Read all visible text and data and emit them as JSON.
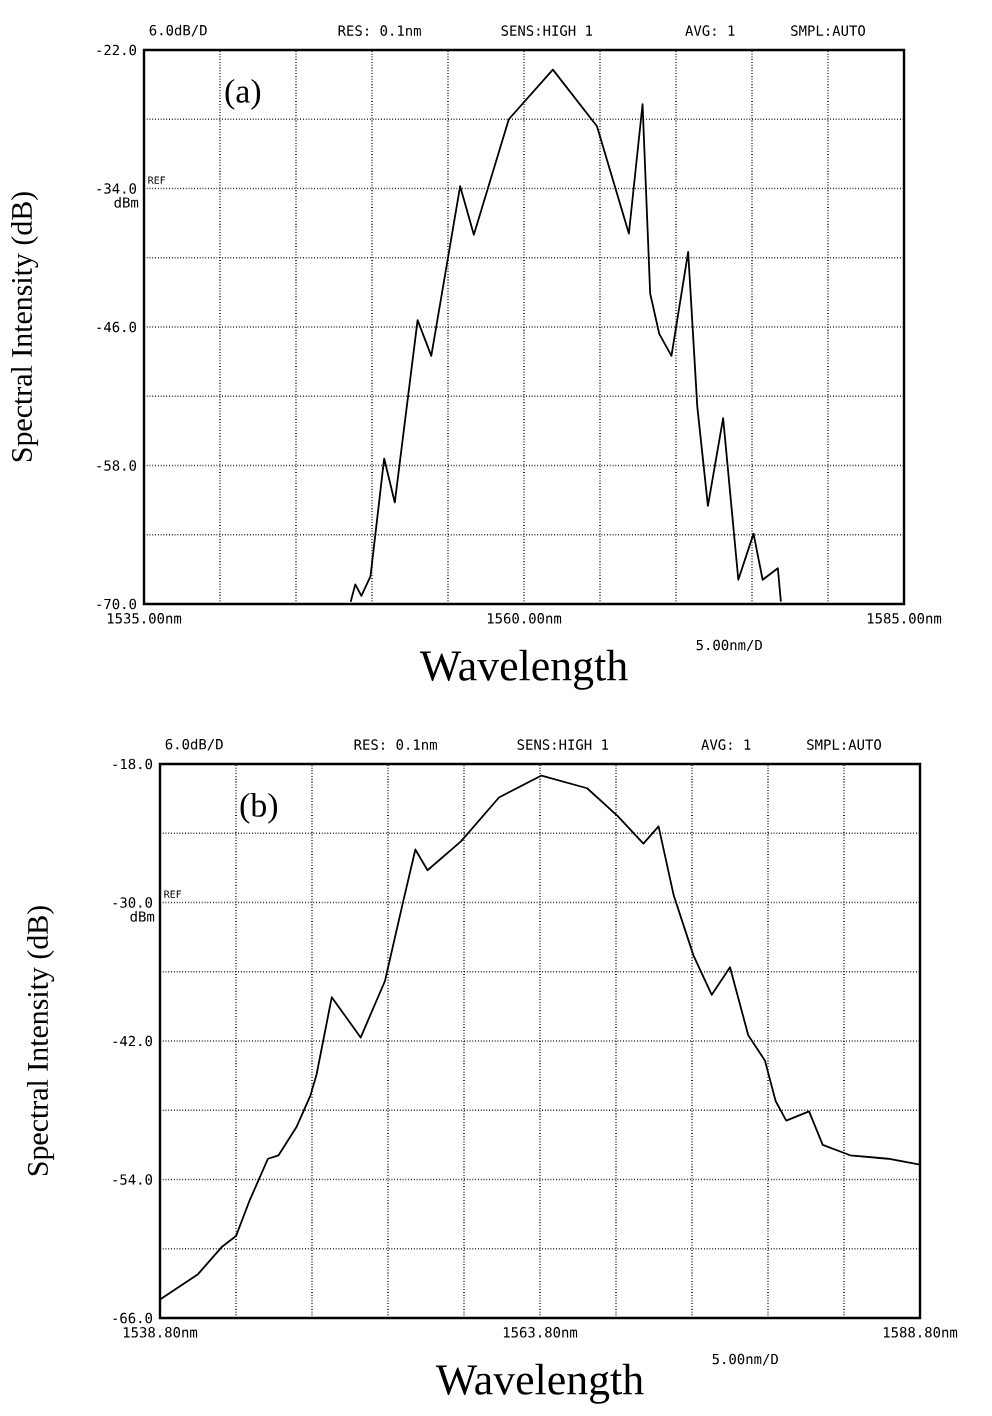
{
  "chart_data": [
    {
      "type": "line",
      "xlabel": "Wavelength",
      "ylabel": "Spectral Intensity (dB)",
      "annotations": [
        "6.0dB/D",
        "RES: 0.1nm",
        "SENS:HIGH 1",
        "AVG:   1",
        "SMPL:AUTO",
        "(a)",
        "REF",
        "dBm",
        "5.00nm/D"
      ],
      "xlim": [
        1535,
        1585
      ],
      "ylim": [
        -70,
        -22
      ],
      "xticks": [
        {
          "value": 1535,
          "label": "1535.00nm"
        },
        {
          "value": 1540,
          "label": null
        },
        {
          "value": 1545,
          "label": null
        },
        {
          "value": 1550,
          "label": null
        },
        {
          "value": 1555,
          "label": null
        },
        {
          "value": 1560,
          "label": "1560.00nm"
        },
        {
          "value": 1565,
          "label": null
        },
        {
          "value": 1570,
          "label": null
        },
        {
          "value": 1575,
          "label": null
        },
        {
          "value": 1580,
          "label": null
        },
        {
          "value": 1585,
          "label": "1585.00nm"
        }
      ],
      "yticks": [
        {
          "value": -70,
          "label": "-70.0"
        },
        {
          "value": -64,
          "label": null
        },
        {
          "value": -58,
          "label": "-58.0"
        },
        {
          "value": -52,
          "label": null
        },
        {
          "value": -46,
          "label": "-46.0"
        },
        {
          "value": -40,
          "label": null
        },
        {
          "value": -34,
          "label": "-34.0"
        },
        {
          "value": -28,
          "label": null
        },
        {
          "value": -22,
          "label": "-22.0"
        }
      ],
      "grid": true,
      "marker": "none",
      "line_style": "solid",
      "series": [
        {
          "color": "#000000",
          "x": [
            1548.6,
            1548.9,
            1549.3,
            1549.9,
            1550.8,
            1551.5,
            1553.0,
            1553.9,
            1555.8,
            1556.7,
            1559.0,
            1561.9,
            1564.8,
            1566.9,
            1567.8,
            1568.3,
            1568.9,
            1569.7,
            1570.8,
            1571.4,
            1572.1,
            1573.1,
            1574.1,
            1575.1,
            1575.7,
            1576.7,
            1576.9
          ],
          "values": [
            -69.8,
            -68.3,
            -69.3,
            -67.6,
            -57.4,
            -61.2,
            -45.4,
            -48.5,
            -33.8,
            -38.0,
            -28.0,
            -23.7,
            -28.6,
            -37.9,
            -26.7,
            -43.1,
            -46.6,
            -48.5,
            -39.5,
            -52.9,
            -61.5,
            -53.9,
            -67.9,
            -63.9,
            -67.9,
            -66.9,
            -69.8
          ]
        }
      ]
    },
    {
      "type": "line",
      "xlabel": "Wavelength",
      "ylabel": "Spectral Intensity (dB)",
      "annotations": [
        "6.0dB/D",
        "RES: 0.1nm",
        "SENS:HIGH 1",
        "AVG:   1",
        "SMPL:AUTO",
        "(b)",
        "REF",
        "dBm",
        "5.00nm/D"
      ],
      "xlim": [
        1538.8,
        1588.8
      ],
      "ylim": [
        -66,
        -18
      ],
      "xticks": [
        {
          "value": 1538.8,
          "label": "1538.80nm"
        },
        {
          "value": 1543.8,
          "label": null
        },
        {
          "value": 1548.8,
          "label": null
        },
        {
          "value": 1553.8,
          "label": null
        },
        {
          "value": 1558.8,
          "label": null
        },
        {
          "value": 1563.8,
          "label": "1563.80nm"
        },
        {
          "value": 1568.8,
          "label": null
        },
        {
          "value": 1573.8,
          "label": null
        },
        {
          "value": 1578.8,
          "label": null
        },
        {
          "value": 1583.8,
          "label": null
        },
        {
          "value": 1588.8,
          "label": "1588.80nm"
        }
      ],
      "yticks": [
        {
          "value": -66,
          "label": "-66.0"
        },
        {
          "value": -60,
          "label": null
        },
        {
          "value": -54,
          "label": "-54.0"
        },
        {
          "value": -48,
          "label": null
        },
        {
          "value": -42,
          "label": "-42.0"
        },
        {
          "value": -36,
          "label": null
        },
        {
          "value": -30,
          "label": "-30.0"
        },
        {
          "value": -24,
          "label": null
        },
        {
          "value": -18,
          "label": "-18.0"
        }
      ],
      "grid": true,
      "marker": "none",
      "line_style": "solid",
      "series": [
        {
          "color": "#000000",
          "x": [
            1538.8,
            1541.3,
            1542.9,
            1543.8,
            1544.7,
            1545.9,
            1546.6,
            1547.8,
            1548.7,
            1549.1,
            1550.1,
            1552.0,
            1553.6,
            1554.8,
            1555.6,
            1556.4,
            1558.6,
            1561.1,
            1563.9,
            1566.9,
            1568.9,
            1570.6,
            1571.6,
            1572.6,
            1573.9,
            1575.1,
            1576.3,
            1577.5,
            1578.6,
            1579.3,
            1580.0,
            1581.5,
            1582.4,
            1584.2,
            1586.7,
            1588.8
          ],
          "values": [
            -64.4,
            -62.2,
            -59.8,
            -58.9,
            -55.8,
            -52.2,
            -51.9,
            -49.4,
            -46.7,
            -44.9,
            -38.2,
            -41.7,
            -36.8,
            -29.9,
            -25.4,
            -27.2,
            -24.7,
            -20.9,
            -19.0,
            -20.1,
            -22.5,
            -24.9,
            -23.4,
            -29.4,
            -34.6,
            -38.0,
            -35.6,
            -41.5,
            -43.7,
            -47.2,
            -48.9,
            -48.1,
            -51.0,
            -51.9,
            -52.2,
            -52.7
          ]
        }
      ]
    }
  ]
}
